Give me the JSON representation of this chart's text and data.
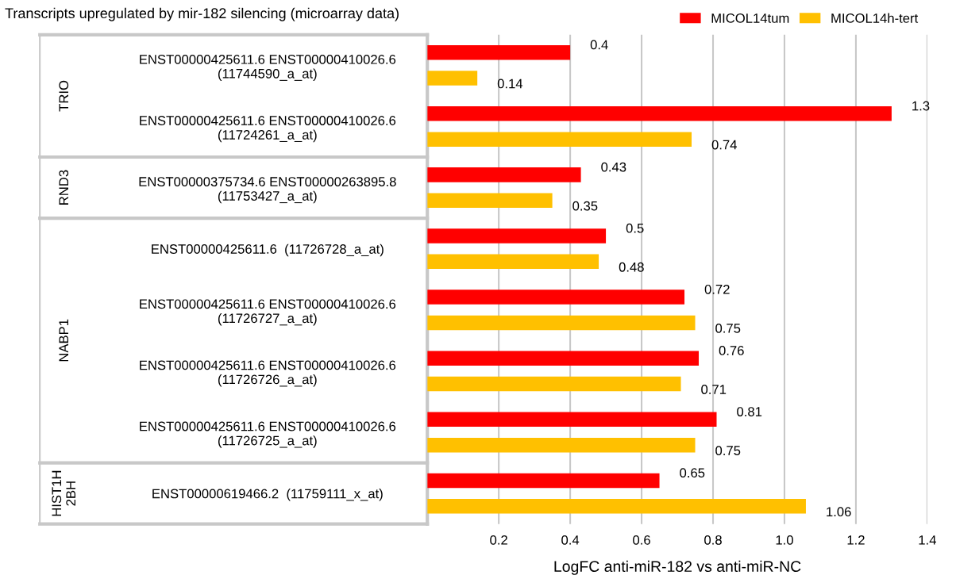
{
  "chart_data": {
    "type": "bar",
    "orientation": "horizontal",
    "title": "Transcripts upregulated by mir-182 silencing (microarray data)",
    "xlabel": "LogFC anti-miR-182 vs anti-miR-NC",
    "categories": [
      "ENST00000425611.6 ENST00000410026.6\n(11744590_a_at)",
      "ENST00000425611.6 ENST00000410026.6\n(11724261_a_at)",
      "ENST00000375734.6 ENST00000263895.8\n(11753427_a_at)",
      "ENST00000425611.6  (11726728_a_at)",
      "ENST00000425611.6 ENST00000410026.6\n(11726727_a_at)",
      "ENST00000425611.6 ENST00000410026.6\n(11726726_a_at)",
      "ENST00000425611.6 ENST00000410026.6\n(11726725_a_at)",
      "ENST00000619466.2  (11759111_x_at)"
    ],
    "series": [
      {
        "name": "MICOL14tum",
        "color": "#ff0000",
        "values": [
          0.4,
          1.3,
          0.43,
          0.5,
          0.72,
          0.76,
          0.81,
          0.65
        ]
      },
      {
        "name": "MICOL14h-tert",
        "color": "#ffc000",
        "values": [
          0.14,
          0.74,
          0.35,
          0.48,
          0.75,
          0.71,
          0.75,
          1.06
        ]
      }
    ],
    "annotations": [
      "TRIO",
      "RND3",
      "NABP1",
      "HIST1H\n2BH"
    ],
    "xlim": [
      0,
      1.4
    ],
    "xticks": [
      0.2,
      0.4,
      0.6,
      0.8,
      {
        "value": 1,
        "label": "1.0"
      },
      1.2,
      1.4
    ],
    "grid": "x",
    "legend": "top right",
    "data_labels": true
  }
}
